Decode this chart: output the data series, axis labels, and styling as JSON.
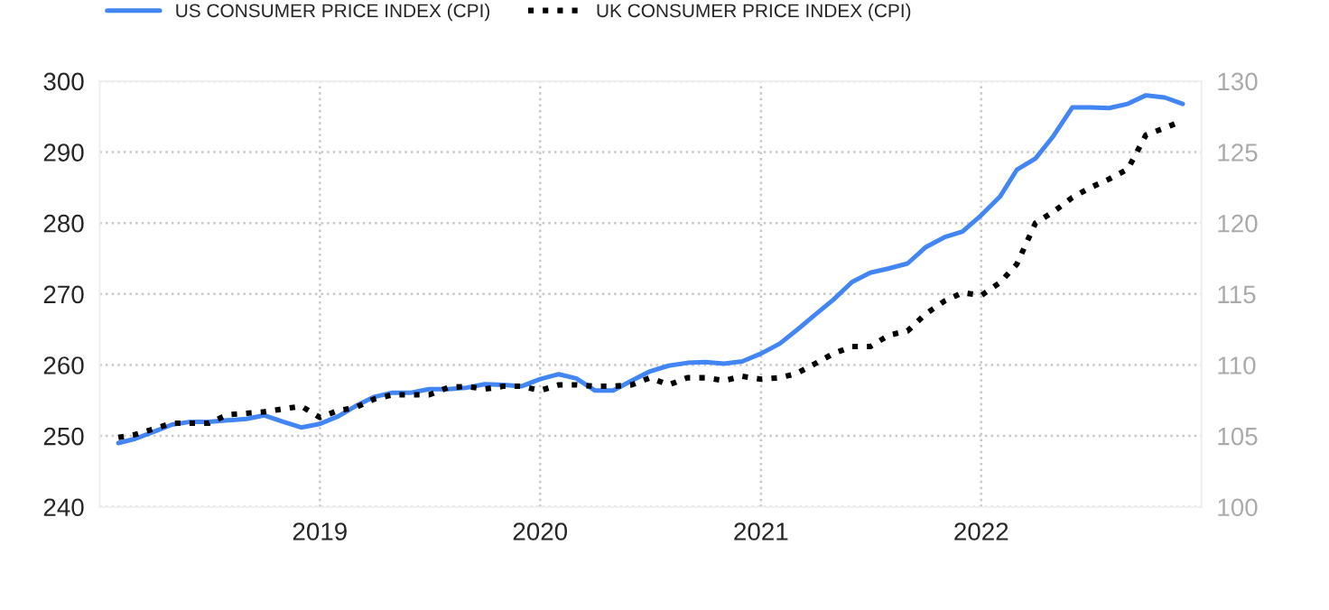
{
  "chart_data": {
    "type": "line",
    "x": [
      "2018-02",
      "2018-03",
      "2018-04",
      "2018-05",
      "2018-06",
      "2018-07",
      "2018-08",
      "2018-09",
      "2018-10",
      "2018-11",
      "2018-12",
      "2019-01",
      "2019-02",
      "2019-03",
      "2019-04",
      "2019-05",
      "2019-06",
      "2019-07",
      "2019-08",
      "2019-09",
      "2019-10",
      "2019-11",
      "2019-12",
      "2020-01",
      "2020-02",
      "2020-03",
      "2020-04",
      "2020-05",
      "2020-06",
      "2020-07",
      "2020-08",
      "2020-09",
      "2020-10",
      "2020-11",
      "2020-12",
      "2021-01",
      "2021-02",
      "2021-03",
      "2021-04",
      "2021-05",
      "2021-06",
      "2021-07",
      "2021-08",
      "2021-09",
      "2021-10",
      "2021-11",
      "2021-12",
      "2022-01",
      "2022-02",
      "2022-03",
      "2022-04",
      "2022-05",
      "2022-06",
      "2022-07",
      "2022-08",
      "2022-09",
      "2022-10",
      "2022-11",
      "2022-12"
    ],
    "series": [
      {
        "name": "US CONSUMER PRICE INDEX (CPI)",
        "color": "#4285f4",
        "line_style": "solid",
        "values": [
          249.0,
          249.6,
          250.6,
          251.6,
          252.0,
          252.0,
          252.2,
          252.4,
          252.9,
          252.0,
          251.2,
          251.7,
          252.8,
          254.2,
          255.5,
          256.1,
          256.1,
          256.6,
          256.6,
          256.8,
          257.3,
          257.2,
          257.0,
          258.0,
          258.7,
          258.1,
          256.4,
          256.4,
          257.8,
          259.1,
          259.9,
          260.3,
          260.4,
          260.2,
          260.5,
          261.6,
          263.0,
          264.9,
          267.1,
          269.2,
          271.7,
          273.0,
          273.6,
          274.3,
          276.6,
          278.0,
          278.8,
          281.1,
          283.7,
          287.5,
          289.1,
          292.3,
          296.3,
          296.3,
          296.2,
          296.8,
          298.0,
          297.7,
          296.8
        ]
      },
      {
        "name": "UK CONSUMER PRICE INDEX (CPI)",
        "color": "#000000",
        "line_style": "dotted",
        "axis": "y2",
        "values": [
          104.9,
          105.1,
          105.5,
          105.9,
          105.9,
          105.9,
          106.5,
          106.6,
          106.7,
          106.9,
          107.1,
          106.3,
          106.8,
          107.0,
          107.6,
          107.9,
          107.9,
          107.9,
          108.4,
          108.5,
          108.3,
          108.5,
          108.5,
          108.2,
          108.6,
          108.6,
          108.5,
          108.5,
          108.6,
          109.1,
          108.6,
          109.1,
          109.1,
          108.9,
          109.2,
          109.0,
          109.1,
          109.4,
          110.1,
          110.8,
          111.3,
          111.3,
          112.1,
          112.4,
          113.6,
          114.5,
          115.1,
          114.9,
          115.8,
          117.1,
          120.0,
          120.8,
          121.8,
          122.5,
          123.1,
          123.8,
          126.2,
          126.7,
          127.2
        ]
      }
    ],
    "xlim": [
      "2018-01-01",
      "2023-01-01"
    ],
    "xticks": [
      {
        "value": "2019-01-01",
        "label": "2019"
      },
      {
        "value": "2020-01-01",
        "label": "2020"
      },
      {
        "value": "2021-01-01",
        "label": "2021"
      },
      {
        "value": "2022-01-01",
        "label": "2022"
      }
    ],
    "ylim": [
      240,
      300
    ],
    "yticks": [
      240,
      250,
      260,
      270,
      280,
      290,
      300
    ],
    "y2lim": [
      100,
      130
    ],
    "y2ticks": [
      100,
      105,
      110,
      115,
      120,
      125,
      130
    ],
    "grid": true,
    "legend": "top left"
  }
}
